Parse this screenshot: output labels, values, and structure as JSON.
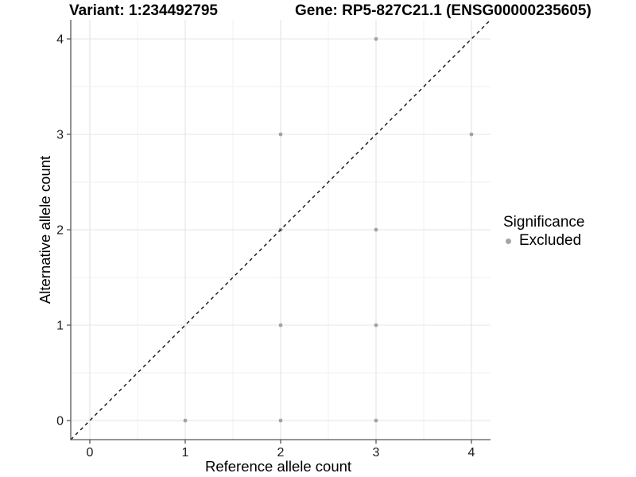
{
  "titles": {
    "left": "Variant: 1:234492795",
    "right": "Gene: RP5-827C21.1 (ENSG00000235605)"
  },
  "axes": {
    "x_label": "Reference allele count",
    "y_label": "Alternative allele count"
  },
  "legend": {
    "title": "Significance",
    "entries": [
      {
        "label": "Excluded",
        "color": "#a5a5a5"
      }
    ]
  },
  "chart_data": {
    "type": "scatter",
    "title_left": "Variant: 1:234492795",
    "title_right": "Gene: RP5-827C21.1 (ENSG00000235605)",
    "xlabel": "Reference allele count",
    "ylabel": "Alternative allele count",
    "xlim": [
      -0.2,
      4.2
    ],
    "ylim": [
      -0.2,
      4.2
    ],
    "x_ticks": [
      0,
      1,
      2,
      3,
      4
    ],
    "y_ticks": [
      0,
      1,
      2,
      3,
      4
    ],
    "minor_gridlines": [
      0.5,
      1.5,
      2.5,
      3.5
    ],
    "grid": "on",
    "legend_position": "right",
    "identity_line": {
      "present": true,
      "style": "dashed",
      "color": "#111111"
    },
    "series": [
      {
        "name": "Excluded",
        "color": "#a3a3a3",
        "points": [
          [
            1,
            0
          ],
          [
            2,
            0
          ],
          [
            3,
            0
          ],
          [
            2,
            1
          ],
          [
            3,
            1
          ],
          [
            2,
            2
          ],
          [
            3,
            2
          ],
          [
            2,
            3
          ],
          [
            4,
            3
          ],
          [
            3,
            4
          ]
        ]
      }
    ]
  },
  "colors": {
    "background": "#ffffff",
    "grid_major": "#e4e4e4",
    "grid_minor": "#f2f2f2",
    "axis_line": "#565656",
    "tick_text": "#1a1a1a",
    "point": "#a3a3a3",
    "identity_line": "#111111"
  }
}
